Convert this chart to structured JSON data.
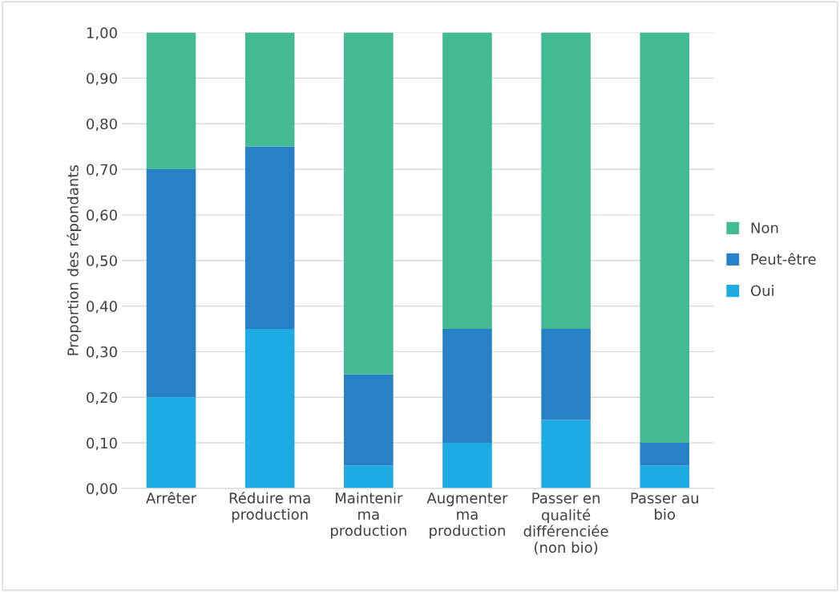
{
  "chart_data": {
    "type": "bar",
    "stacked": true,
    "ylabel": "Proportion des répondants",
    "categories": [
      "Arrêter",
      "Réduire ma\nproduction",
      "Maintenir\nma\nproduction",
      "Augmenter\nma\nproduction",
      "Passer en\nqualité\ndifférenciée\n(non bio)",
      "Passer au\nbio"
    ],
    "series": [
      {
        "name": "Oui",
        "color": "#1eaae2",
        "values": [
          0.2,
          0.35,
          0.05,
          0.1,
          0.15,
          0.05
        ]
      },
      {
        "name": "Peut-être",
        "color": "#2880c6",
        "values": [
          0.5,
          0.4,
          0.2,
          0.25,
          0.2,
          0.05
        ]
      },
      {
        "name": "Non",
        "color": "#43b994",
        "values": [
          0.3,
          0.25,
          0.75,
          0.65,
          0.65,
          0.9
        ]
      }
    ],
    "ylim": [
      0,
      1
    ],
    "yticks": [
      {
        "value": 0,
        "label": "0,00"
      },
      {
        "value": 0.1,
        "label": "0,10"
      },
      {
        "value": 0.2,
        "label": "0,20"
      },
      {
        "value": 0.3,
        "label": "0,30"
      },
      {
        "value": 0.4,
        "label": "0,40"
      },
      {
        "value": 0.5,
        "label": "0,50"
      },
      {
        "value": 0.6,
        "label": "0,60"
      },
      {
        "value": 0.7,
        "label": "0,70"
      },
      {
        "value": 0.8,
        "label": "0,80"
      },
      {
        "value": 0.9,
        "label": "0,90"
      },
      {
        "value": 1,
        "label": "1,00"
      }
    ],
    "grid": "y",
    "legend": "right"
  }
}
